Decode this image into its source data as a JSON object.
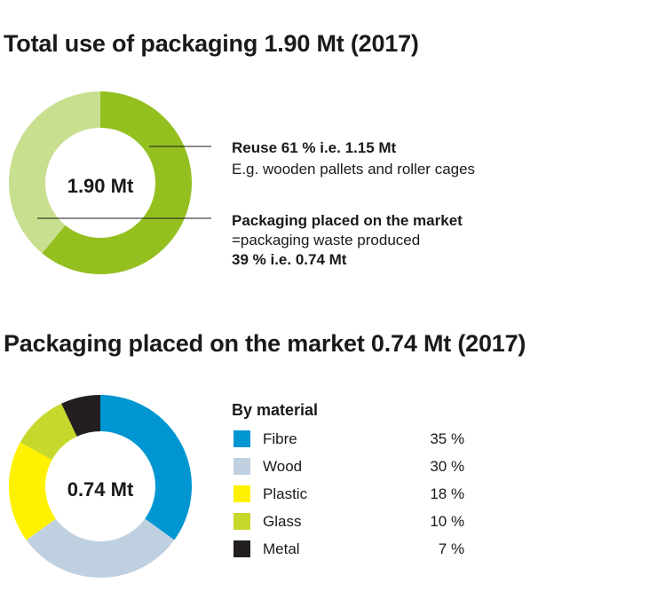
{
  "colors": {
    "reuse": "#93c01f",
    "market": "#c9df90",
    "fibre": "#0096d2",
    "wood": "#bfd1e0",
    "plastic": "#fff200",
    "glass": "#c6d82b",
    "metal": "#231f20",
    "text": "#1a1a1a"
  },
  "chart_data": [
    {
      "type": "pie",
      "variant": "donut",
      "title": "Total use of packaging 1.90 Mt (2017)",
      "center_label": "1.90 Mt",
      "slices": [
        {
          "key": "reuse",
          "value": 61,
          "label_title": "Reuse 61 % i.e. 1.15 Mt",
          "label_lines": [
            "E.g. wooden pallets and roller cages"
          ]
        },
        {
          "key": "market",
          "value": 39,
          "label_title": "Packaging placed on the market",
          "label_lines": [
            "=packaging waste produced"
          ],
          "label_footer": "39 % i.e. 0.74 Mt"
        }
      ]
    },
    {
      "type": "pie",
      "variant": "donut",
      "title": "Packaging placed on the market 0.74 Mt (2017)",
      "center_label": "0.74 Mt",
      "legend_title": "By material",
      "legend_position": "right",
      "slices": [
        {
          "key": "fibre",
          "label": "Fibre",
          "value": 35,
          "value_label": "35 %"
        },
        {
          "key": "wood",
          "label": "Wood",
          "value": 30,
          "value_label": "30 %"
        },
        {
          "key": "plastic",
          "label": "Plastic",
          "value": 18,
          "value_label": "18 %"
        },
        {
          "key": "glass",
          "label": "Glass",
          "value": 10,
          "value_label": "10 %"
        },
        {
          "key": "metal",
          "label": "Metal",
          "value": 7,
          "value_label": "7 %"
        }
      ]
    }
  ]
}
